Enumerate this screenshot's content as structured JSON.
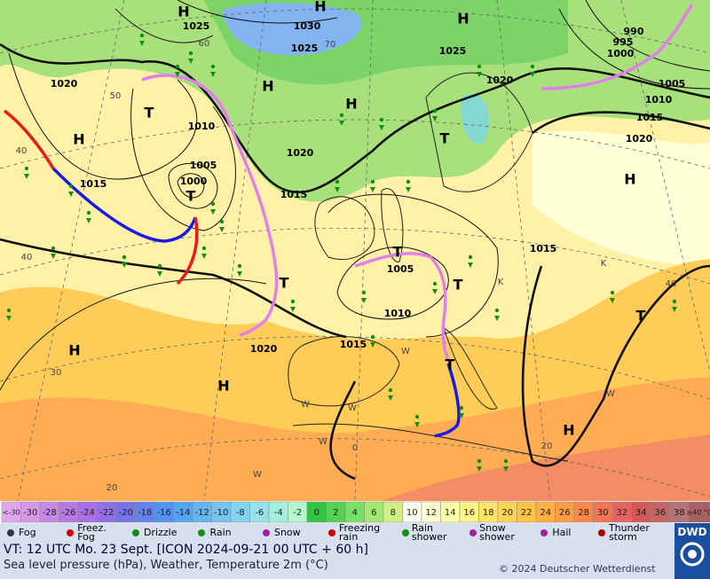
{
  "map": {
    "pressure_centers": [
      "H",
      "H",
      "H",
      "H",
      "H",
      "H",
      "H",
      "H",
      "H",
      "H",
      "T",
      "T",
      "T",
      "T",
      "T",
      "T",
      "T",
      "T"
    ],
    "isobar_labels": [
      "1025",
      "1030",
      "1025",
      "1025",
      "990",
      "995",
      "1000",
      "1020",
      "1020",
      "1005",
      "1010",
      "1010",
      "1015",
      "1020",
      "1020",
      "1005",
      "1000",
      "1015",
      "1015",
      "1015",
      "1005",
      "1010",
      "1015",
      "1020"
    ],
    "grid_labels": [
      "60",
      "70",
      "50",
      "40",
      "40",
      "40",
      "30",
      "20",
      "0",
      "K",
      "K",
      "W",
      "W",
      "W",
      "W",
      "W",
      "W",
      "20"
    ]
  },
  "scale": {
    "cells": [
      {
        "label": "<-30",
        "color": "#e0a8ec"
      },
      {
        "label": "-30",
        "color": "#d898e8"
      },
      {
        "label": "-28",
        "color": "#c888e4"
      },
      {
        "label": "-26",
        "color": "#b878e4"
      },
      {
        "label": "-24",
        "color": "#a870e4"
      },
      {
        "label": "-22",
        "color": "#9070e4"
      },
      {
        "label": "-20",
        "color": "#7474e8"
      },
      {
        "label": "-18",
        "color": "#6484ec"
      },
      {
        "label": "-16",
        "color": "#5494f0"
      },
      {
        "label": "-14",
        "color": "#54a4f0"
      },
      {
        "label": "-12",
        "color": "#64b4f0"
      },
      {
        "label": "-10",
        "color": "#74c4f0"
      },
      {
        "label": "-8",
        "color": "#84d4f0"
      },
      {
        "label": "-6",
        "color": "#94e2ea"
      },
      {
        "label": "-4",
        "color": "#a4f0e0"
      },
      {
        "label": "-2",
        "color": "#b4f8d0"
      },
      {
        "label": "0",
        "color": "#34c444"
      },
      {
        "label": "2",
        "color": "#54d054"
      },
      {
        "label": "4",
        "color": "#78e064"
      },
      {
        "label": "6",
        "color": "#a4e874"
      },
      {
        "label": "8",
        "color": "#d0f084"
      },
      {
        "label": "10",
        "color": "#fffff0"
      },
      {
        "label": "12",
        "color": "#ffffd0"
      },
      {
        "label": "14",
        "color": "#ffffa8"
      },
      {
        "label": "16",
        "color": "#fff488"
      },
      {
        "label": "18",
        "color": "#ffe468"
      },
      {
        "label": "20",
        "color": "#ffd454"
      },
      {
        "label": "22",
        "color": "#ffc444"
      },
      {
        "label": "24",
        "color": "#ffb044"
      },
      {
        "label": "26",
        "color": "#ff9c44"
      },
      {
        "label": "28",
        "color": "#ff8848"
      },
      {
        "label": "30",
        "color": "#f47454"
      },
      {
        "label": "32",
        "color": "#e46464"
      },
      {
        "label": "34",
        "color": "#d45858"
      },
      {
        "label": "36",
        "color": "#c46464"
      },
      {
        "label": "38",
        "color": "#b47474"
      },
      {
        "label": "≥40 °C",
        "color": "#a86060"
      }
    ]
  },
  "legend": [
    "Fog",
    "Freez. Fog",
    "Drizzle",
    "Rain",
    "Snow",
    "Freezing rain",
    "Rain shower",
    "Snow shower",
    "Hail",
    "Thunder storm"
  ],
  "footer": {
    "valid_time": "VT: 12 UTC Mo.  23 Sept. [ICON 2024-09-21  00 UTC + 60 h]",
    "description": "Sea level pressure (hPa), Weather, Temperature 2m (°C)",
    "copyright": "© 2024 Deutscher Wetterdienst",
    "logo": "DWD"
  }
}
